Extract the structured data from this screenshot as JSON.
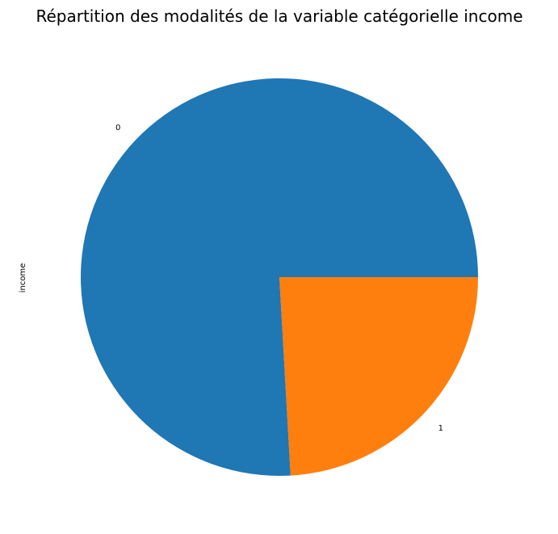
{
  "chart_data": {
    "type": "pie",
    "title": "Répartition des modalités de la variable catégorielle income",
    "ylabel": "income",
    "categories": [
      "0",
      "1"
    ],
    "values": [
      0.759,
      0.241
    ],
    "colors": [
      "#1f77b4",
      "#ff7f0e"
    ],
    "legend": "none"
  }
}
